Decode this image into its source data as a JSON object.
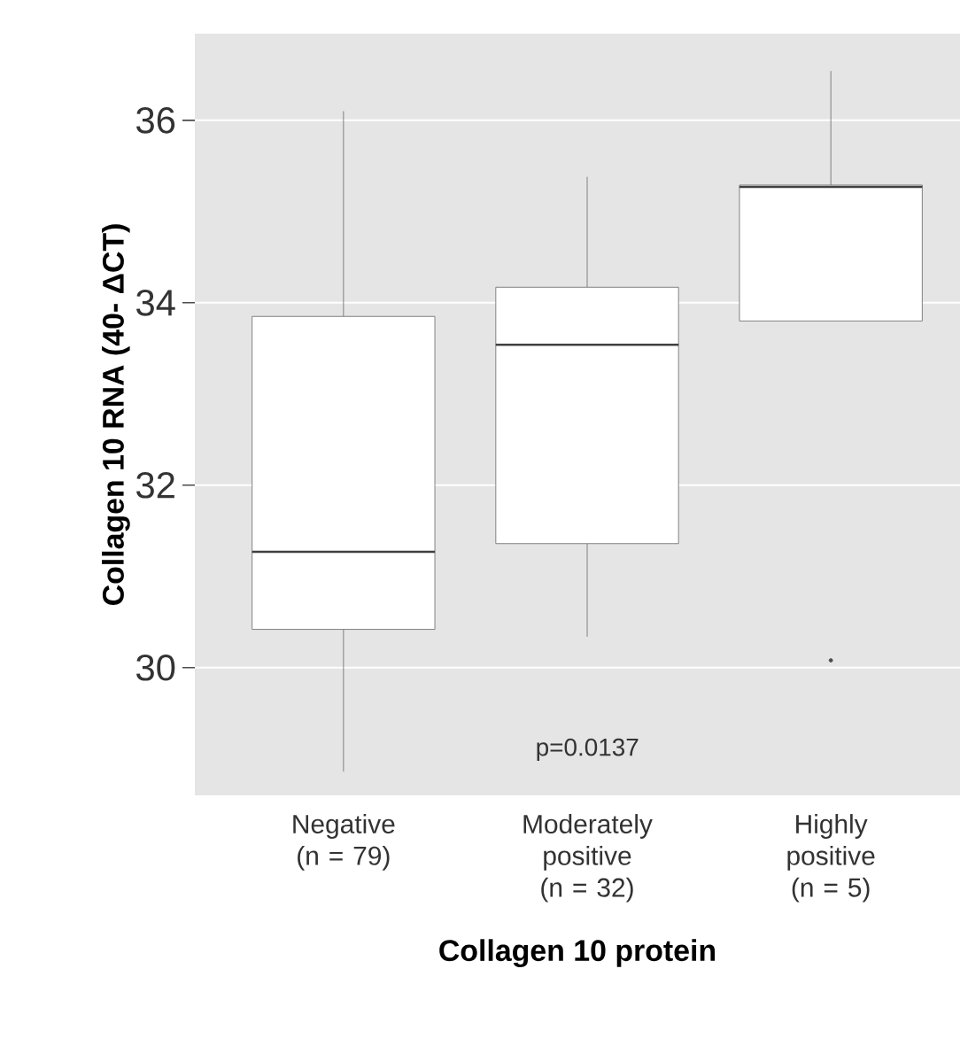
{
  "chart_data": {
    "type": "box",
    "categories": [
      "Negative (n = 79)",
      "Moderately positive (n = 32)",
      "Highly positive (n = 5)"
    ],
    "boxes": [
      {
        "low": 28.86,
        "q1": 30.42,
        "median": 31.27,
        "q3": 33.85,
        "high": 36.1
      },
      {
        "low": 30.34,
        "q1": 31.36,
        "median": 33.54,
        "q3": 34.17,
        "high": 35.38
      },
      {
        "low": 33.8,
        "q1": 33.8,
        "median": 35.27,
        "q3": 35.29,
        "high": 36.54,
        "outliers": [
          30.08
        ]
      }
    ],
    "xlabel": "Collagen 10 protein",
    "ylabel": "Collagen 10 RNA (40- ΔCT)",
    "ylim": [
      28.6,
      36.95
    ],
    "yticks": [
      30,
      32,
      34,
      36
    ],
    "grid": "y",
    "annotations": [
      "p=0.0137"
    ]
  }
}
